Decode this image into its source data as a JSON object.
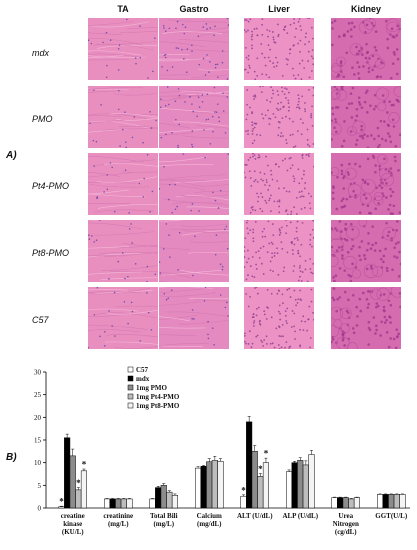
{
  "figure": {
    "panel_a_label": "A)",
    "panel_b_label": "B)",
    "columns": [
      "TA",
      "Gastro",
      "Liver",
      "Kidney"
    ],
    "rows": [
      "mdx",
      "PMO",
      "Pt4-PMO",
      "Pt8-PMO",
      "C57"
    ],
    "tissue_colors": {
      "TA": "#e88fc0",
      "Gastro": "#e48ac0",
      "Liver": "#ec92c4",
      "Kidney": "#d56cb0"
    }
  },
  "chart_data": {
    "type": "bar",
    "categories": [
      [
        "creatine",
        "kinase",
        "(KU/L)"
      ],
      [
        "creatinine",
        "(mg/L)"
      ],
      [
        "Total Bili",
        "(mg/L)"
      ],
      [
        "Calcium",
        "(mg/dL)"
      ],
      [
        "ALT (U/dL)"
      ],
      [
        "ALP (U/dL)"
      ],
      [
        "Urea",
        "Nitrogen",
        "(cg/dL)"
      ],
      [
        "GGT(U/L)"
      ]
    ],
    "series": [
      {
        "name": "C57",
        "color": "#ffffff",
        "values": [
          0.3,
          2.0,
          2.0,
          8.8,
          2.6,
          8.0,
          2.3,
          3.0
        ],
        "errors": [
          0.1,
          0.1,
          0.1,
          0.3,
          0.3,
          0.4,
          0.1,
          0.1
        ]
      },
      {
        "name": "mdx",
        "color": "#000000",
        "values": [
          15.5,
          2.0,
          4.5,
          9.2,
          19.0,
          10.0,
          2.3,
          3.0
        ],
        "errors": [
          0.8,
          0.1,
          0.3,
          0.2,
          1.2,
          0.3,
          0.1,
          0.1
        ]
      },
      {
        "name": "1mg PMO",
        "color": "#8c8c8c",
        "values": [
          11.5,
          2.0,
          5.0,
          10.2,
          12.5,
          10.5,
          2.3,
          3.0
        ],
        "errors": [
          1.5,
          0.1,
          0.4,
          0.7,
          1.3,
          0.6,
          0.1,
          0.1
        ]
      },
      {
        "name": "1mg Pt4-PMO",
        "color": "#bdbdbd",
        "values": [
          4.0,
          2.0,
          3.5,
          10.5,
          7.0,
          9.5,
          2.0,
          3.0
        ],
        "errors": [
          0.5,
          0.1,
          0.3,
          0.9,
          0.6,
          0.9,
          0.1,
          0.1
        ]
      },
      {
        "name": "1mg Pt8-PMO",
        "color": "#f4f4f4",
        "values": [
          8.2,
          2.0,
          2.8,
          10.3,
          10.0,
          11.8,
          2.3,
          3.0
        ],
        "errors": [
          0.4,
          0.1,
          0.3,
          0.6,
          1.0,
          0.9,
          0.1,
          0.1
        ]
      }
    ],
    "asterisks": [
      {
        "category": 0,
        "series": 0
      },
      {
        "category": 0,
        "series": 3
      },
      {
        "category": 0,
        "series": 4
      },
      {
        "category": 4,
        "series": 0
      },
      {
        "category": 4,
        "series": 3
      },
      {
        "category": 4,
        "series": 4
      }
    ],
    "asterisk_symbol": "*",
    "ylim": [
      0,
      30
    ],
    "yticks": [
      0,
      5,
      10,
      15,
      20,
      25,
      30
    ],
    "legend_placement": "top-left",
    "grid": false
  }
}
